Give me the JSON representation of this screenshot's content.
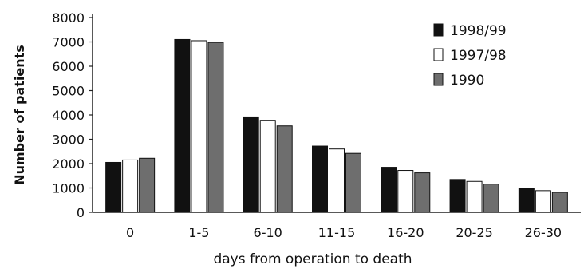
{
  "chart_data": {
    "type": "bar",
    "categories": [
      "0",
      "1-5",
      "6-10",
      "11-15",
      "16-20",
      "20-25",
      "26-30"
    ],
    "series": [
      {
        "name": "1998/99",
        "color": "#111111",
        "values": [
          2050,
          7100,
          3920,
          2720,
          1850,
          1350,
          980
        ]
      },
      {
        "name": "1997/98",
        "color": "#ffffff",
        "values": [
          2150,
          7050,
          3780,
          2600,
          1720,
          1270,
          890
        ]
      },
      {
        "name": "1990",
        "color": "#6e6e6e",
        "values": [
          2220,
          6980,
          3550,
          2420,
          1620,
          1160,
          820
        ]
      }
    ],
    "xlabel": "days from operation to death",
    "ylabel": "Number of patients",
    "ylim": [
      0,
      8000
    ],
    "yticks": [
      "0",
      "1000",
      "2000",
      "3000",
      "4000",
      "5000",
      "6000",
      "7000",
      "8000"
    ],
    "grid": false,
    "legend_position": "top-right"
  }
}
